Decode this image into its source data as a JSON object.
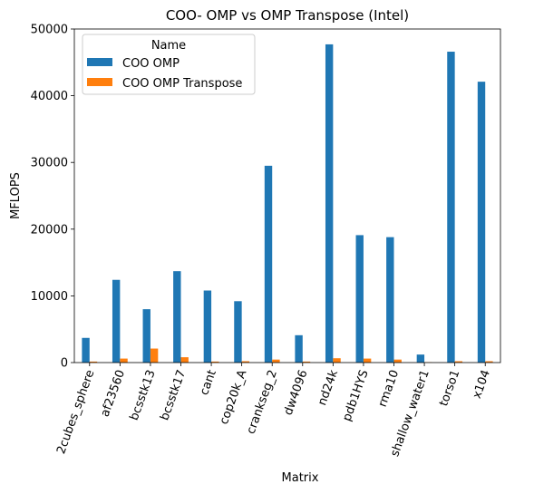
{
  "chart_data": {
    "type": "bar",
    "title": "COO- OMP vs OMP Transpose (Intel)",
    "xlabel": "Matrix",
    "ylabel": "MFLOPS",
    "ylim": [
      0,
      50000
    ],
    "yticks": [
      0,
      10000,
      20000,
      30000,
      40000,
      50000
    ],
    "categories": [
      "2cubes_sphere",
      "af23560",
      "bcsstk13",
      "bcsstk17",
      "cant",
      "cop20k_A",
      "crankseg_2",
      "dw4096",
      "nd24k",
      "pdb1HYS",
      "rma10",
      "shallow_water1",
      "torso1",
      "x104"
    ],
    "legend_title": "Name",
    "legend_position": "top-left",
    "grid": false,
    "series": [
      {
        "name": "COO OMP",
        "color": "#1f77b4",
        "values": [
          3700,
          12400,
          8000,
          13700,
          10800,
          9200,
          29500,
          4100,
          47700,
          19100,
          18800,
          1200,
          46600,
          42100
        ]
      },
      {
        "name": "COO OMP Transpose",
        "color": "#ff7f0e",
        "values": [
          150,
          600,
          2100,
          800,
          150,
          200,
          450,
          150,
          650,
          600,
          450,
          50,
          200,
          200
        ]
      }
    ]
  }
}
